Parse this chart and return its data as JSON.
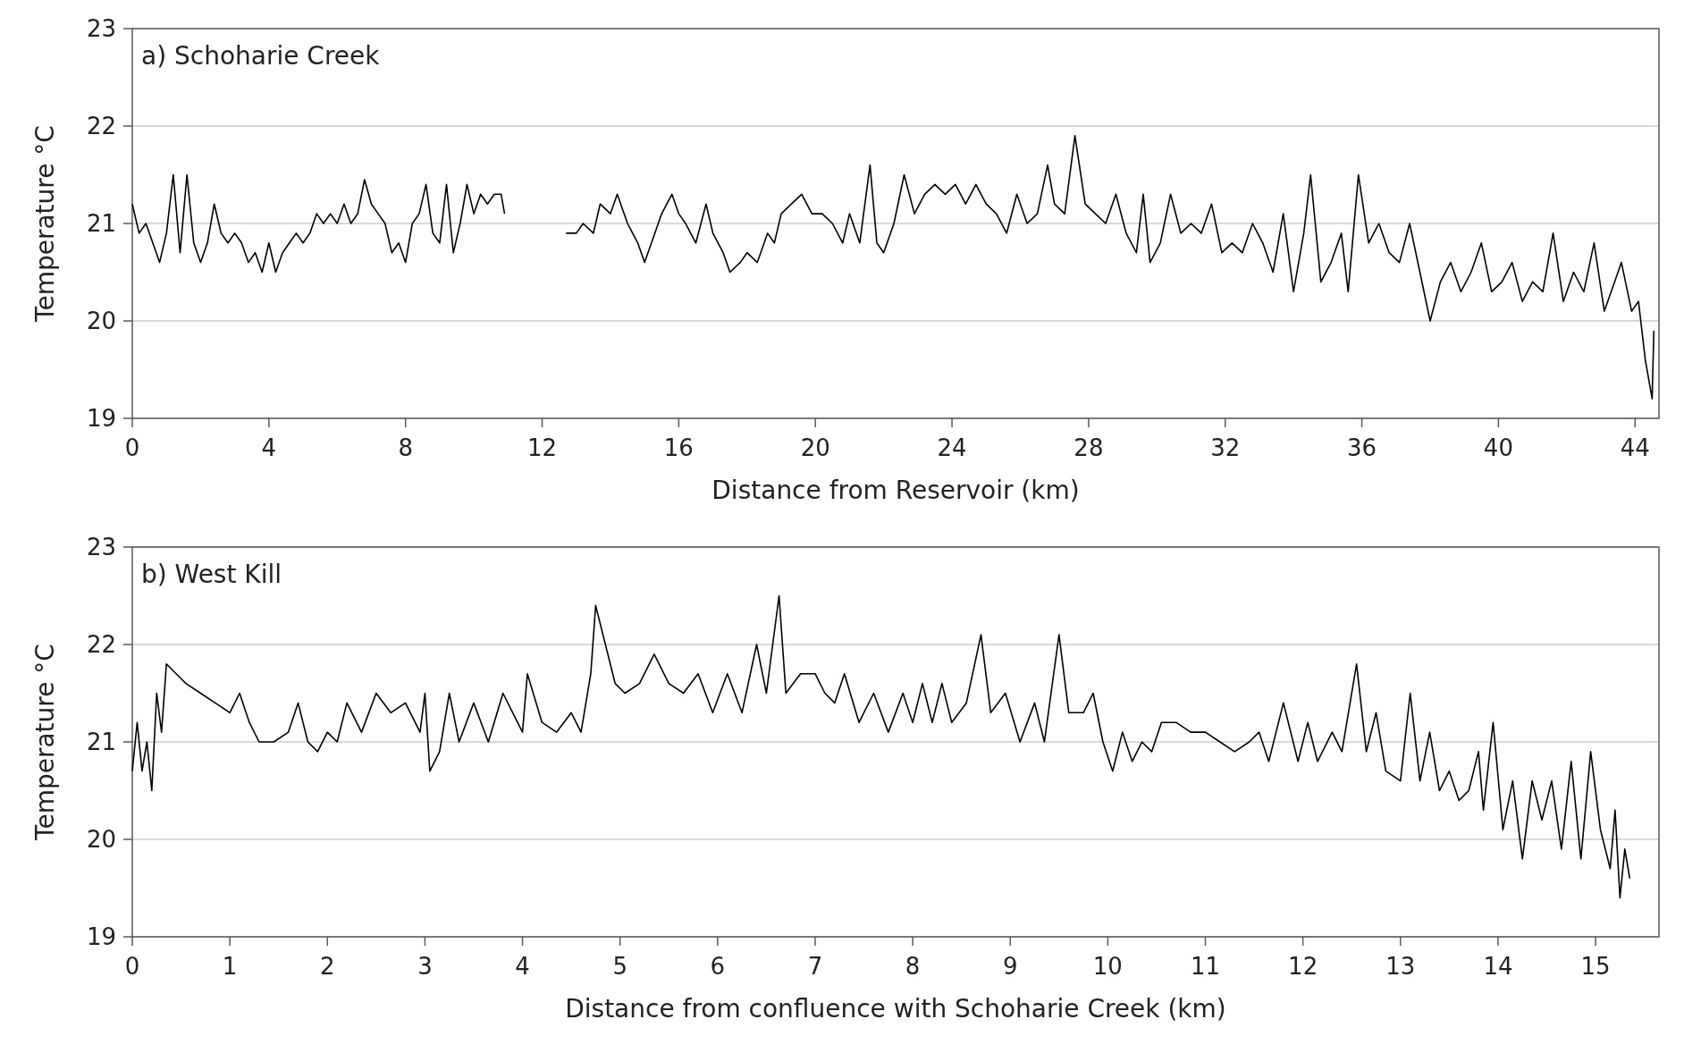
{
  "chart_data": [
    {
      "type": "line",
      "title": "a) Schoharie Creek",
      "xlabel": "Distance from Reservoir (km)",
      "ylabel": "Temperature °C",
      "xlim": [
        0,
        44.7
      ],
      "xticks": [
        0,
        4,
        8,
        12,
        16,
        20,
        24,
        28,
        32,
        36,
        40,
        44
      ],
      "ylim": [
        19,
        23
      ],
      "yticks": [
        19,
        20,
        21,
        22,
        23
      ],
      "grid": "y",
      "series": [
        {
          "color": "#000000",
          "x": [
            0,
            0.2,
            0.4,
            0.6,
            0.8,
            1.0,
            1.2,
            1.4,
            1.6,
            1.8,
            2.0,
            2.2,
            2.4,
            2.6,
            2.8,
            3.0,
            3.2,
            3.4,
            3.6,
            3.8,
            4.0,
            4.2,
            4.4,
            4.6,
            4.8,
            5.0,
            5.2,
            5.4,
            5.6,
            5.8,
            6.0,
            6.2,
            6.4,
            6.6,
            6.8,
            7.0,
            7.2,
            7.4,
            7.6,
            7.8,
            8.0,
            8.2,
            8.4,
            8.6,
            8.8,
            9.0,
            9.2,
            9.4,
            9.6,
            9.8,
            10.0,
            10.2,
            10.4,
            10.6,
            10.8,
            10.9,
            11.8,
            12.7,
            13.0,
            13.2,
            13.5,
            13.7,
            14.0,
            14.2,
            14.5,
            14.8,
            15.0,
            15.3,
            15.5,
            15.8,
            16.0,
            16.2,
            16.5,
            16.8,
            17.0,
            17.3,
            17.5,
            17.8,
            18.0,
            18.3,
            18.6,
            18.8,
            19.0,
            19.3,
            19.6,
            19.9,
            20.2,
            20.5,
            20.8,
            21.0,
            21.3,
            21.6,
            21.8,
            22.0,
            22.3,
            22.6,
            22.9,
            23.2,
            23.5,
            23.8,
            24.1,
            24.4,
            24.7,
            25.0,
            25.3,
            25.6,
            25.9,
            26.2,
            26.5,
            26.8,
            27.0,
            27.3,
            27.6,
            27.9,
            28.2,
            28.5,
            28.8,
            29.1,
            29.4,
            29.6,
            29.8,
            30.1,
            30.4,
            30.7,
            31.0,
            31.3,
            31.6,
            31.9,
            32.2,
            32.5,
            32.8,
            33.1,
            33.4,
            33.7,
            34.0,
            34.3,
            34.5,
            34.8,
            35.1,
            35.4,
            35.6,
            35.9,
            36.2,
            36.5,
            36.8,
            37.1,
            37.4,
            37.7,
            38.0,
            38.3,
            38.6,
            38.9,
            39.2,
            39.5,
            39.8,
            40.1,
            40.4,
            40.7,
            41.0,
            41.3,
            41.6,
            41.9,
            42.2,
            42.5,
            42.8,
            43.1,
            43.4,
            43.6,
            43.9,
            44.1,
            44.3,
            44.5,
            44.55
          ],
          "values": [
            21.2,
            20.9,
            21.0,
            20.8,
            20.6,
            20.9,
            21.5,
            20.7,
            21.5,
            20.8,
            20.6,
            20.8,
            21.2,
            20.9,
            20.8,
            20.9,
            20.8,
            20.6,
            20.7,
            20.5,
            20.8,
            20.5,
            20.7,
            20.8,
            20.9,
            20.8,
            20.9,
            21.1,
            21.0,
            21.1,
            21.0,
            21.2,
            21.0,
            21.1,
            21.45,
            21.2,
            21.1,
            21.0,
            20.7,
            20.8,
            20.6,
            21.0,
            21.1,
            21.4,
            20.9,
            20.8,
            21.4,
            20.7,
            21.0,
            21.4,
            21.1,
            21.3,
            21.2,
            21.3,
            21.3,
            21.1,
            null,
            20.9,
            20.9,
            21.0,
            20.9,
            21.2,
            21.1,
            21.3,
            21.0,
            20.8,
            20.6,
            20.9,
            21.1,
            21.3,
            21.1,
            21.0,
            20.8,
            21.2,
            20.9,
            20.7,
            20.5,
            20.6,
            20.7,
            20.6,
            20.9,
            20.8,
            21.1,
            21.2,
            21.3,
            21.1,
            21.1,
            21.0,
            20.8,
            21.1,
            20.8,
            21.6,
            20.8,
            20.7,
            21.0,
            21.5,
            21.1,
            21.3,
            21.4,
            21.3,
            21.4,
            21.2,
            21.4,
            21.2,
            21.1,
            20.9,
            21.3,
            21.0,
            21.1,
            21.6,
            21.2,
            21.1,
            21.9,
            21.2,
            21.1,
            21.0,
            21.3,
            20.9,
            20.7,
            21.3,
            20.6,
            20.8,
            21.3,
            20.9,
            21.0,
            20.9,
            21.2,
            20.7,
            20.8,
            20.7,
            21.0,
            20.8,
            20.5,
            21.1,
            20.3,
            20.9,
            21.5,
            20.4,
            20.6,
            20.9,
            20.3,
            21.5,
            20.8,
            21.0,
            20.7,
            20.6,
            21.0,
            20.5,
            20.0,
            20.4,
            20.6,
            20.3,
            20.5,
            20.8,
            20.3,
            20.4,
            20.6,
            20.2,
            20.4,
            20.3,
            20.9,
            20.2,
            20.5,
            20.3,
            20.8,
            20.1,
            20.4,
            20.6,
            20.1,
            20.2,
            19.6,
            19.2,
            19.9
          ]
        }
      ]
    },
    {
      "type": "line",
      "title": "b) West Kill",
      "xlabel": "Distance from confluence with Schoharie Creek (km)",
      "ylabel": "Temperature °C",
      "xlim": [
        0,
        15.65
      ],
      "xticks": [
        0,
        1,
        2,
        3,
        4,
        5,
        6,
        7,
        8,
        9,
        10,
        11,
        12,
        13,
        14,
        15
      ],
      "ylim": [
        19,
        23
      ],
      "yticks": [
        19,
        20,
        21,
        22,
        23
      ],
      "grid": "y",
      "series": [
        {
          "color": "#000000",
          "x": [
            0,
            0.05,
            0.1,
            0.15,
            0.2,
            0.25,
            0.3,
            0.35,
            0.45,
            0.55,
            0.7,
            0.85,
            1.0,
            1.1,
            1.2,
            1.3,
            1.45,
            1.6,
            1.7,
            1.8,
            1.9,
            2.0,
            2.1,
            2.2,
            2.35,
            2.5,
            2.65,
            2.8,
            2.95,
            3.0,
            3.05,
            3.15,
            3.25,
            3.35,
            3.5,
            3.65,
            3.8,
            3.9,
            4.0,
            4.05,
            4.2,
            4.35,
            4.5,
            4.6,
            4.7,
            4.75,
            4.85,
            4.95,
            5.05,
            5.2,
            5.35,
            5.5,
            5.65,
            5.8,
            5.95,
            6.1,
            6.25,
            6.4,
            6.5,
            6.63,
            6.7,
            6.85,
            7.0,
            7.1,
            7.2,
            7.3,
            7.45,
            7.6,
            7.75,
            7.9,
            8.0,
            8.1,
            8.2,
            8.3,
            8.4,
            8.55,
            8.7,
            8.8,
            8.95,
            9.1,
            9.25,
            9.35,
            9.5,
            9.6,
            9.75,
            9.85,
            9.95,
            10.05,
            10.15,
            10.25,
            10.35,
            10.45,
            10.55,
            10.7,
            10.85,
            11.0,
            11.15,
            11.3,
            11.45,
            11.55,
            11.65,
            11.8,
            11.95,
            12.05,
            12.15,
            12.3,
            12.4,
            12.55,
            12.65,
            12.75,
            12.85,
            13.0,
            13.1,
            13.2,
            13.3,
            13.4,
            13.5,
            13.6,
            13.7,
            13.8,
            13.85,
            13.95,
            14.05,
            14.15,
            14.25,
            14.35,
            14.45,
            14.55,
            14.65,
            14.75,
            14.85,
            14.95,
            15.05,
            15.15,
            15.2,
            15.25,
            15.3,
            15.35
          ],
          "values": [
            20.7,
            21.2,
            20.7,
            21.0,
            20.5,
            21.5,
            21.1,
            21.8,
            21.7,
            21.6,
            21.5,
            21.4,
            21.3,
            21.5,
            21.2,
            21.0,
            21.0,
            21.1,
            21.4,
            21.0,
            20.9,
            21.1,
            21.0,
            21.4,
            21.1,
            21.5,
            21.3,
            21.4,
            21.1,
            21.5,
            20.7,
            20.9,
            21.5,
            21.0,
            21.4,
            21.0,
            21.5,
            21.3,
            21.1,
            21.7,
            21.2,
            21.1,
            21.3,
            21.1,
            21.7,
            22.4,
            22.0,
            21.6,
            21.5,
            21.6,
            21.9,
            21.6,
            21.5,
            21.7,
            21.3,
            21.7,
            21.3,
            22.0,
            21.5,
            22.5,
            21.5,
            21.7,
            21.7,
            21.5,
            21.4,
            21.7,
            21.2,
            21.5,
            21.1,
            21.5,
            21.2,
            21.6,
            21.2,
            21.6,
            21.2,
            21.4,
            22.1,
            21.3,
            21.5,
            21.0,
            21.4,
            21.0,
            22.1,
            21.3,
            21.3,
            21.5,
            21.0,
            20.7,
            21.1,
            20.8,
            21.0,
            20.9,
            21.2,
            21.2,
            21.1,
            21.1,
            21.0,
            20.9,
            21.0,
            21.1,
            20.8,
            21.4,
            20.8,
            21.2,
            20.8,
            21.1,
            20.9,
            21.8,
            20.9,
            21.3,
            20.7,
            20.6,
            21.5,
            20.6,
            21.1,
            20.5,
            20.7,
            20.4,
            20.5,
            20.9,
            20.3,
            21.2,
            20.1,
            20.6,
            19.8,
            20.6,
            20.2,
            20.6,
            19.9,
            20.8,
            19.8,
            20.9,
            20.1,
            19.7,
            20.3,
            19.4,
            19.9,
            19.6
          ]
        }
      ]
    }
  ]
}
